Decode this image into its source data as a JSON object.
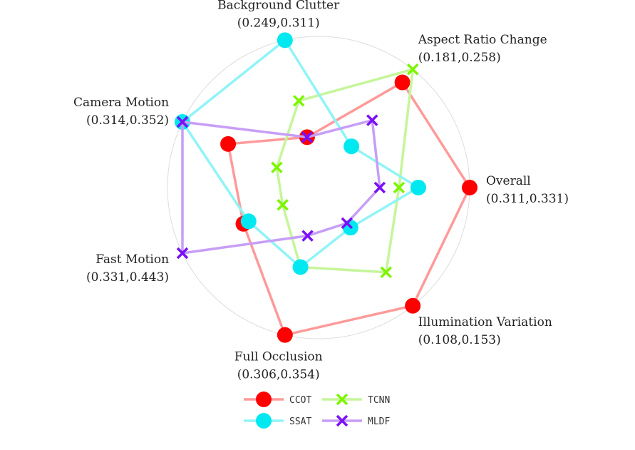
{
  "chart_data": {
    "type": "radar",
    "axes": [
      {
        "name": "Overall",
        "range": "(0.311,0.331)"
      },
      {
        "name": "Aspect Ratio Change",
        "range": "(0.181,0.258)"
      },
      {
        "name": "Background Clutter",
        "range": "(0.249,0.311)"
      },
      {
        "name": "Camera Motion",
        "range": "(0.314,0.352)"
      },
      {
        "name": "Fast Motion",
        "range": "(0.331,0.443)"
      },
      {
        "name": "Full Occlusion",
        "range": "(0.306,0.354)"
      },
      {
        "name": "Illumination Variation",
        "range": "(0.108,0.153)"
      }
    ],
    "series": [
      {
        "name": "CCOT",
        "color": "#ff0000",
        "line_color": "#ff9a9a",
        "marker": "circle",
        "values": [
          0.331,
          0.248,
          0.263,
          0.337,
          0.384,
          0.354,
          0.153
        ]
      },
      {
        "name": "TCNN",
        "color": "#7df500",
        "line_color": "#c6f59a",
        "marker": "x",
        "values": [
          0.32,
          0.258,
          0.281,
          0.321,
          0.346,
          0.328,
          0.138
        ]
      },
      {
        "name": "SSAT",
        "color": "#00e8f0",
        "line_color": "#90f4f7",
        "marker": "circle",
        "values": [
          0.323,
          0.199,
          0.311,
          0.352,
          0.379,
          0.328,
          0.118
        ]
      },
      {
        "name": "MLDF",
        "color": "#7a10f5",
        "line_color": "#c69ef7",
        "marker": "x",
        "values": [
          0.317,
          0.219,
          0.263,
          0.352,
          0.443,
          0.316,
          0.116
        ]
      }
    ],
    "grid": true,
    "legend": "bottom-center"
  }
}
